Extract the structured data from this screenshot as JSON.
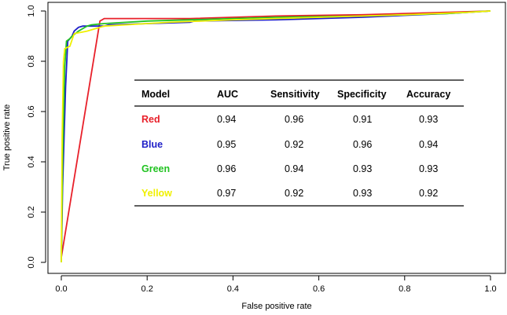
{
  "chart_data": {
    "type": "line",
    "title": "",
    "xlabel": "False positive rate",
    "ylabel": "True positive rate",
    "xlim": [
      0,
      1
    ],
    "ylim": [
      0,
      1
    ],
    "x_ticks": [
      "0.0",
      "0.2",
      "0.4",
      "0.6",
      "0.8",
      "1.0"
    ],
    "y_ticks": [
      "0.0",
      "0.2",
      "0.4",
      "0.6",
      "0.8",
      "1.0"
    ],
    "grid": false,
    "series": [
      {
        "color": "#e8202a",
        "points": [
          [
            0,
            0
          ],
          [
            0.0,
            0.02
          ],
          [
            0.09,
            0.96
          ],
          [
            0.1,
            0.97
          ],
          [
            0.3,
            0.97
          ],
          [
            0.5,
            0.98
          ],
          [
            0.7,
            0.985
          ],
          [
            0.9,
            0.995
          ],
          [
            1.0,
            1.0
          ]
        ]
      },
      {
        "color": "#1f1fc8",
        "points": [
          [
            0,
            0
          ],
          [
            0.003,
            0.3
          ],
          [
            0.01,
            0.7
          ],
          [
            0.015,
            0.88
          ],
          [
            0.025,
            0.9
          ],
          [
            0.03,
            0.92
          ],
          [
            0.04,
            0.935
          ],
          [
            0.05,
            0.94
          ],
          [
            0.1,
            0.94
          ],
          [
            0.11,
            0.945
          ],
          [
            0.3,
            0.955
          ],
          [
            0.31,
            0.96
          ],
          [
            0.5,
            0.965
          ],
          [
            0.7,
            0.975
          ],
          [
            0.9,
            0.99
          ],
          [
            1.0,
            1.0
          ]
        ]
      },
      {
        "color": "#22c322",
        "points": [
          [
            0,
            0
          ],
          [
            0.003,
            0.4
          ],
          [
            0.008,
            0.78
          ],
          [
            0.012,
            0.88
          ],
          [
            0.02,
            0.89
          ],
          [
            0.025,
            0.9
          ],
          [
            0.04,
            0.92
          ],
          [
            0.06,
            0.94
          ],
          [
            0.07,
            0.945
          ],
          [
            0.1,
            0.95
          ],
          [
            0.2,
            0.96
          ],
          [
            0.3,
            0.965
          ],
          [
            0.5,
            0.975
          ],
          [
            0.7,
            0.98
          ],
          [
            0.9,
            0.99
          ],
          [
            1.0,
            1.0
          ]
        ]
      },
      {
        "color": "#f0f000",
        "points": [
          [
            0,
            0
          ],
          [
            0.002,
            0.5
          ],
          [
            0.005,
            0.8
          ],
          [
            0.008,
            0.85
          ],
          [
            0.02,
            0.86
          ],
          [
            0.03,
            0.91
          ],
          [
            0.045,
            0.915
          ],
          [
            0.06,
            0.92
          ],
          [
            0.08,
            0.93
          ],
          [
            0.09,
            0.935
          ],
          [
            0.1,
            0.94
          ],
          [
            0.2,
            0.95
          ],
          [
            0.25,
            0.955
          ],
          [
            0.4,
            0.965
          ],
          [
            0.6,
            0.975
          ],
          [
            0.8,
            0.985
          ],
          [
            0.95,
            0.995
          ],
          [
            1.0,
            1.0
          ]
        ]
      }
    ],
    "table": {
      "headers": [
        "Model",
        "AUC",
        "Sensitivity",
        "Specificity",
        "Accuracy"
      ],
      "rows": [
        {
          "model": "Red",
          "color": "#e8202a",
          "values": [
            "0.94",
            "0.96",
            "0.91",
            "0.93"
          ]
        },
        {
          "model": "Blue",
          "color": "#1f1fc8",
          "values": [
            "0.95",
            "0.92",
            "0.96",
            "0.94"
          ]
        },
        {
          "model": "Green",
          "color": "#22c322",
          "values": [
            "0.96",
            "0.94",
            "0.93",
            "0.93"
          ]
        },
        {
          "model": "Yellow",
          "color": "#f0f000",
          "values": [
            "0.97",
            "0.92",
            "0.93",
            "0.92"
          ]
        }
      ]
    }
  }
}
